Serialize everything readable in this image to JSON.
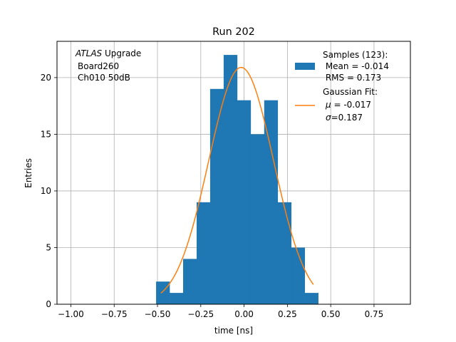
{
  "chart_data": {
    "type": "bar",
    "title": "Run 202",
    "xlabel": "time [ns]",
    "ylabel": "Entries",
    "xlim": [
      -1.08,
      0.96
    ],
    "ylim": [
      0,
      23.2
    ],
    "grid": true,
    "xticks": [
      -1.0,
      -0.75,
      -0.5,
      -0.25,
      0.0,
      0.25,
      0.5,
      0.75
    ],
    "xtick_labels": [
      "−1.00",
      "−0.75",
      "−0.50",
      "−0.25",
      "0.00",
      "0.25",
      "0.50",
      "0.75"
    ],
    "yticks": [
      0,
      5,
      10,
      15,
      20
    ],
    "ytick_labels": [
      "0",
      "5",
      "10",
      "15",
      "20"
    ],
    "annotation": {
      "line1_italic": "ATLAS",
      "line1_rest": " Upgrade",
      "line2": "Board260",
      "line3": "Ch010 50dB"
    },
    "histogram": {
      "name": "Samples (123):",
      "color": "#1f77b4",
      "bin_edges": [
        -0.508,
        -0.43,
        -0.352,
        -0.274,
        -0.196,
        -0.118,
        -0.04,
        0.038,
        0.116,
        0.194,
        0.272,
        0.35,
        0.428
      ],
      "counts": [
        2,
        1,
        4,
        9,
        19,
        22,
        18,
        15,
        18,
        9,
        5,
        1
      ]
    },
    "fit": {
      "name": "Gaussian Fit:",
      "color": "#ff7f0e",
      "amplitude": 20.9,
      "mu": -0.017,
      "sigma": 0.187,
      "x_range": [
        -0.48,
        0.4
      ]
    },
    "legend": {
      "position": "top-right",
      "hist_lines": [
        "Samples (123):",
        " Mean = -0.014",
        " RMS = 0.173"
      ],
      "fit_line1": "Gaussian Fit:",
      "fit_mu_symbol": "μ",
      "fit_mu_text": " = -0.017",
      "fit_sigma_symbol": "σ",
      "fit_sigma_text": "=0.187"
    }
  }
}
